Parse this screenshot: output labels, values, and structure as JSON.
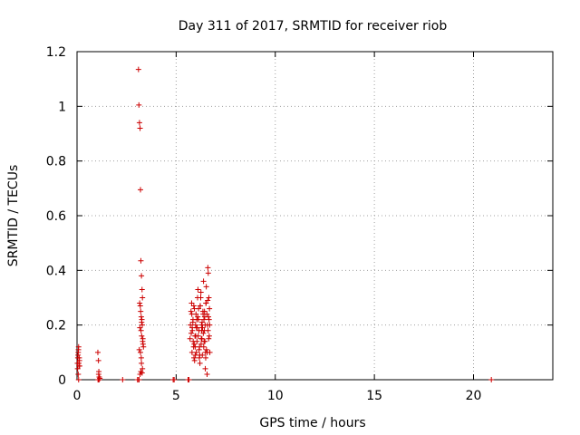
{
  "chart_data": {
    "type": "scatter",
    "title": "Day 311 of 2017, SRMTID for receiver riob",
    "xlabel": "GPS time / hours",
    "ylabel": "SRMTID / TECUs",
    "xlim": [
      0,
      24
    ],
    "ylim": [
      0,
      1.2
    ],
    "xticks": [
      0,
      5,
      10,
      15,
      20
    ],
    "xtick_labels": [
      "0",
      "5",
      "10",
      "15",
      "20"
    ],
    "yticks": [
      0,
      0.2,
      0.4,
      0.6,
      0.8,
      1.0,
      1.2
    ],
    "ytick_labels": [
      "0",
      "0.2",
      "0.4",
      "0.6",
      "0.8",
      "1",
      "1.2"
    ],
    "grid": true,
    "marker": "+",
    "color": "#cc0000",
    "series": [
      {
        "name": "SRMTID",
        "x": [
          0.02,
          0.04,
          0.06,
          0.08,
          0.1,
          0.12,
          0.05,
          0.09,
          0.03,
          0.07,
          0.11,
          0.06,
          0.13,
          0.08,
          1.05,
          1.08,
          1.1,
          1.12,
          1.07,
          1.15,
          1.09,
          1.11,
          1.06,
          2.3,
          3.05,
          3.1,
          3.12,
          3.15,
          3.18,
          3.2,
          3.22,
          3.25,
          3.28,
          3.3,
          3.16,
          3.19,
          3.21,
          3.24,
          3.27,
          3.29,
          3.17,
          3.23,
          3.26,
          3.31,
          3.33,
          3.35,
          3.14,
          3.2,
          3.25,
          3.3,
          3.22,
          3.28,
          3.18,
          3.24,
          3.32,
          3.26,
          3.11,
          3.13,
          4.85,
          4.9,
          5.6,
          5.65,
          5.7,
          5.72,
          5.75,
          5.78,
          5.8,
          5.82,
          5.85,
          5.88,
          5.9,
          5.92,
          5.95,
          5.98,
          6.0,
          6.02,
          6.05,
          6.08,
          6.1,
          6.12,
          6.15,
          6.18,
          6.2,
          6.22,
          6.25,
          6.28,
          6.3,
          6.32,
          6.35,
          6.38,
          6.4,
          6.42,
          6.45,
          6.48,
          6.5,
          6.52,
          6.55,
          6.58,
          6.6,
          6.62,
          6.65,
          6.68,
          6.7,
          5.76,
          5.84,
          5.91,
          5.97,
          6.03,
          6.09,
          6.16,
          6.21,
          6.27,
          6.33,
          6.39,
          6.44,
          6.49,
          6.56,
          6.61,
          6.66,
          5.79,
          5.86,
          5.93,
          5.99,
          6.06,
          6.13,
          6.19,
          6.26,
          6.31,
          6.37,
          6.43,
          6.47,
          6.53,
          6.59,
          6.64,
          6.69,
          5.81,
          5.89,
          5.96,
          6.04,
          6.11,
          6.17,
          6.24,
          6.29,
          6.36,
          6.41,
          6.46,
          6.51,
          6.57,
          6.63,
          6.67,
          20.9
        ],
        "y": [
          0.06,
          0.08,
          0.1,
          0.12,
          0.05,
          0.07,
          0.09,
          0.06,
          0.04,
          0.11,
          0.08,
          0.02,
          0.05,
          0.0,
          0.1,
          0.07,
          0.03,
          0.01,
          0.0,
          0.005,
          0.02,
          0.0,
          0.0,
          0.0,
          0.0,
          1.135,
          1.005,
          0.94,
          0.92,
          0.695,
          0.435,
          0.38,
          0.33,
          0.3,
          0.28,
          0.27,
          0.25,
          0.23,
          0.22,
          0.2,
          0.19,
          0.18,
          0.16,
          0.14,
          0.13,
          0.12,
          0.11,
          0.1,
          0.06,
          0.04,
          0.03,
          0.025,
          0.02,
          0.08,
          0.15,
          0.21,
          0.0,
          0.0,
          0.0,
          0.0,
          0.0,
          0.0,
          0.15,
          0.2,
          0.25,
          0.28,
          0.1,
          0.18,
          0.22,
          0.12,
          0.08,
          0.26,
          0.16,
          0.2,
          0.24,
          0.1,
          0.14,
          0.3,
          0.33,
          0.22,
          0.18,
          0.12,
          0.06,
          0.27,
          0.32,
          0.2,
          0.15,
          0.09,
          0.25,
          0.36,
          0.22,
          0.18,
          0.14,
          0.1,
          0.28,
          0.34,
          0.24,
          0.2,
          0.41,
          0.39,
          0.3,
          0.26,
          0.1,
          0.17,
          0.21,
          0.13,
          0.09,
          0.19,
          0.23,
          0.11,
          0.27,
          0.15,
          0.19,
          0.12,
          0.23,
          0.08,
          0.02,
          0.18,
          0.22,
          0.24,
          0.14,
          0.07,
          0.16,
          0.19,
          0.26,
          0.09,
          0.13,
          0.21,
          0.17,
          0.25,
          0.04,
          0.11,
          0.29,
          0.15,
          0.2,
          0.19,
          0.27,
          0.12,
          0.22,
          0.16,
          0.08,
          0.3,
          0.18,
          0.24,
          0.14,
          0.2,
          0.28,
          0.1,
          0.23,
          0.16,
          0.0
        ]
      }
    ]
  }
}
